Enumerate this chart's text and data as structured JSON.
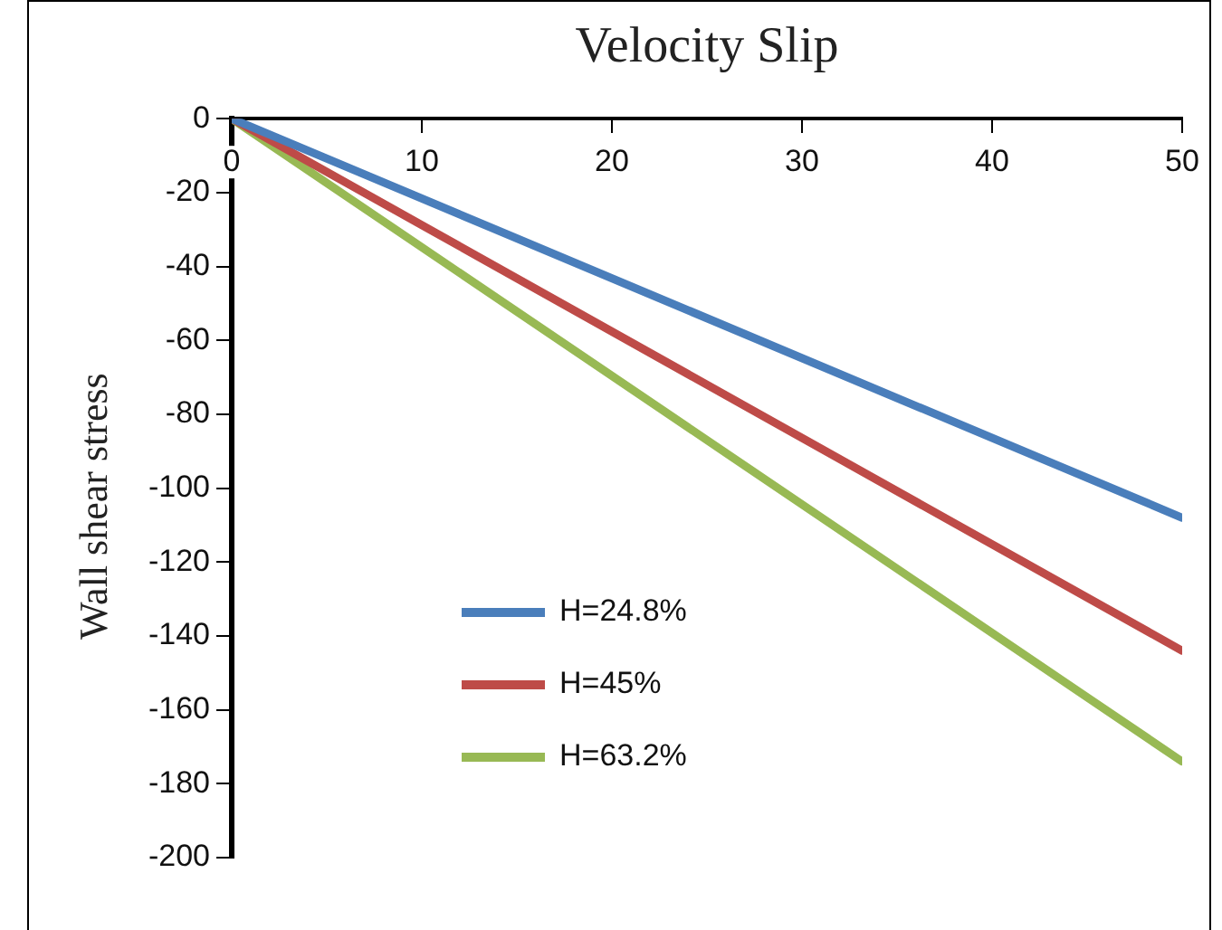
{
  "chart_data": {
    "type": "line",
    "title": "Velocity Slip",
    "ylabel": "Wall shear stress",
    "x": [
      0,
      50
    ],
    "series": [
      {
        "name": "H=24.8%",
        "color": "#4a7ebb",
        "values": [
          0,
          -108
        ]
      },
      {
        "name": "H=45%",
        "color": "#be4b48",
        "values": [
          0,
          -144
        ]
      },
      {
        "name": "H=63.2%",
        "color": "#98b954",
        "values": [
          0,
          -174
        ]
      }
    ],
    "xlim": [
      0,
      50
    ],
    "xticks": [
      0,
      10,
      20,
      30,
      40,
      50
    ],
    "ylim": [
      -200,
      0
    ],
    "yticks": [
      -200,
      -180,
      -160,
      -140,
      -120,
      -100,
      -80,
      -60,
      -40,
      -20,
      0
    ],
    "grid": false,
    "legend": "bottom left",
    "marker": "none",
    "line_style": "solid"
  }
}
